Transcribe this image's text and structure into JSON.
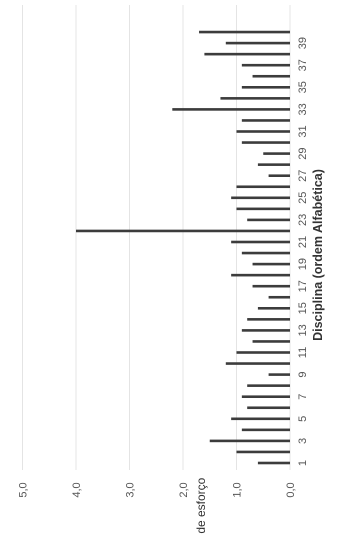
{
  "chart_data": {
    "type": "bar",
    "orientation": "vertical, image rotated 90° clockwise",
    "xlabel": "Disciplina (ordem Alfabética)",
    "ylabel": "Taxa de esforço",
    "ylim": [
      0,
      5
    ],
    "yticks": [
      "0,0",
      "1,0",
      "2,0",
      "3,0",
      "4,0",
      "5,0"
    ],
    "xtick_labels": [
      "1",
      "3",
      "5",
      "7",
      "9",
      "11",
      "13",
      "15",
      "17",
      "19",
      "21",
      "23",
      "25",
      "27",
      "29",
      "31",
      "33",
      "35",
      "37",
      "39"
    ],
    "grid": true,
    "bar_color": "#3c3c3c",
    "categories": [
      1,
      2,
      3,
      4,
      5,
      6,
      7,
      8,
      9,
      10,
      11,
      12,
      13,
      14,
      15,
      16,
      17,
      18,
      19,
      20,
      21,
      22,
      23,
      24,
      25,
      26,
      27,
      28,
      29,
      30,
      31,
      32,
      33,
      34,
      35,
      36,
      37,
      38,
      39,
      40
    ],
    "values": [
      0.6,
      1.0,
      1.5,
      0.9,
      1.1,
      0.8,
      0.9,
      0.8,
      0.4,
      1.2,
      1.0,
      0.7,
      0.9,
      0.8,
      0.6,
      0.4,
      0.7,
      1.1,
      0.7,
      0.9,
      1.1,
      4.0,
      0.8,
      1.0,
      1.1,
      1.0,
      0.4,
      0.6,
      0.5,
      0.9,
      1.0,
      0.9,
      2.2,
      1.3,
      0.9,
      0.7,
      0.9,
      1.6,
      1.2,
      1.7
    ]
  }
}
